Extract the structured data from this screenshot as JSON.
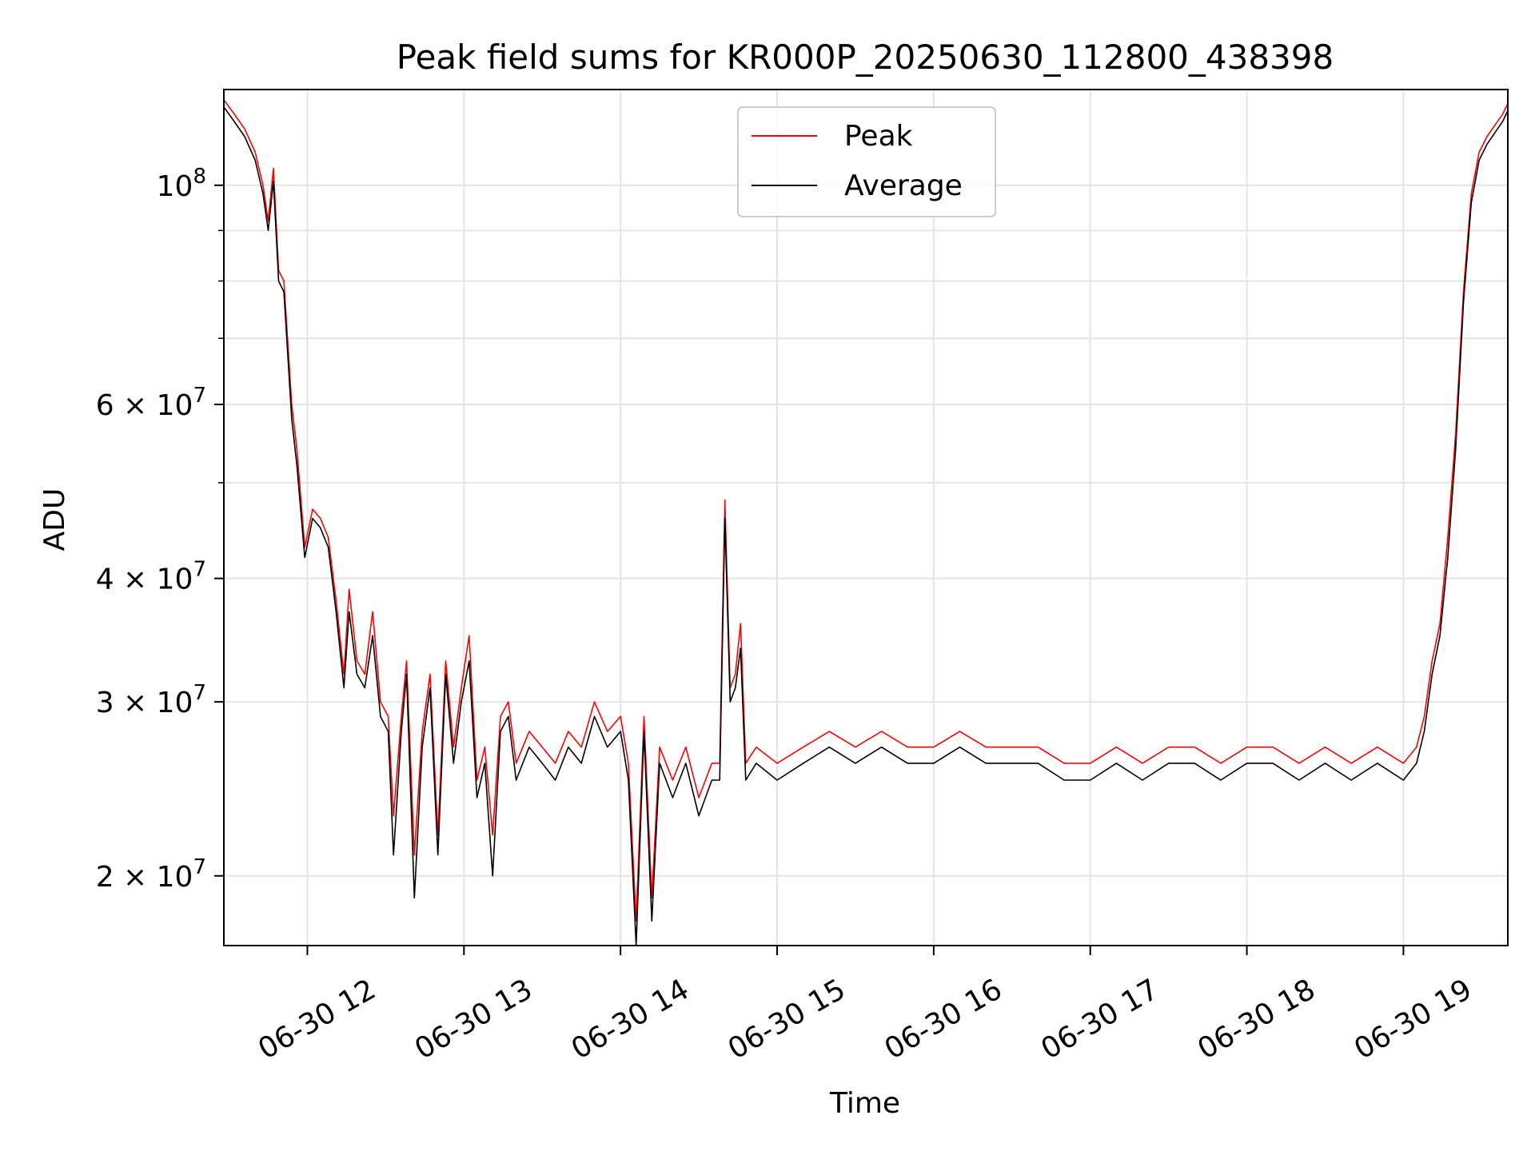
{
  "chart_data": {
    "type": "line",
    "title": "Peak field sums for KR000P_20250630_112800_438398",
    "xlabel": "Time",
    "ylabel": "ADU",
    "yscale": "log",
    "grid": true,
    "legend_position": "upper center",
    "colors": {
      "Peak": "#ff0000",
      "Average": "#000000"
    },
    "xlim": [
      "2025-06-30 11:28",
      "2025-06-30 19:40"
    ],
    "ylim": [
      17000000,
      125000000
    ],
    "x_ticks": [
      {
        "value": "2025-06-30 12:00",
        "label": "06-30 12"
      },
      {
        "value": "2025-06-30 13:00",
        "label": "06-30 13"
      },
      {
        "value": "2025-06-30 14:00",
        "label": "06-30 14"
      },
      {
        "value": "2025-06-30 15:00",
        "label": "06-30 15"
      },
      {
        "value": "2025-06-30 16:00",
        "label": "06-30 16"
      },
      {
        "value": "2025-06-30 17:00",
        "label": "06-30 17"
      },
      {
        "value": "2025-06-30 18:00",
        "label": "06-30 18"
      },
      {
        "value": "2025-06-30 19:00",
        "label": "06-30 19"
      }
    ],
    "y_ticks": [
      {
        "value": 20000000,
        "label_base": "2 × 10",
        "label_exp": "7"
      },
      {
        "value": 30000000,
        "label_base": "3 × 10",
        "label_exp": "7"
      },
      {
        "value": 40000000,
        "label_base": "4 × 10",
        "label_exp": "7"
      },
      {
        "value": 60000000,
        "label_base": "6 × 10",
        "label_exp": "7"
      },
      {
        "value": 100000000,
        "label_base": "10",
        "label_exp": "8"
      }
    ],
    "minor_y_gridlines": [
      50000000,
      70000000,
      80000000,
      90000000
    ],
    "series": [
      {
        "name": "Peak",
        "points": [
          [
            "2025-06-30 11:28",
            122000000
          ],
          [
            "2025-06-30 11:32",
            118000000
          ],
          [
            "2025-06-30 11:36",
            114000000
          ],
          [
            "2025-06-30 11:40",
            108000000
          ],
          [
            "2025-06-30 11:43",
            100000000
          ],
          [
            "2025-06-30 11:45",
            92000000
          ],
          [
            "2025-06-30 11:47",
            104000000
          ],
          [
            "2025-06-30 11:49",
            82000000
          ],
          [
            "2025-06-30 11:51",
            80000000
          ],
          [
            "2025-06-30 11:54",
            60000000
          ],
          [
            "2025-06-30 11:56",
            54000000
          ],
          [
            "2025-06-30 11:59",
            43000000
          ],
          [
            "2025-06-30 12:02",
            47000000
          ],
          [
            "2025-06-30 12:05",
            46000000
          ],
          [
            "2025-06-30 12:08",
            44000000
          ],
          [
            "2025-06-30 12:11",
            38000000
          ],
          [
            "2025-06-30 12:14",
            32000000
          ],
          [
            "2025-06-30 12:16",
            39000000
          ],
          [
            "2025-06-30 12:19",
            33000000
          ],
          [
            "2025-06-30 12:22",
            32000000
          ],
          [
            "2025-06-30 12:25",
            37000000
          ],
          [
            "2025-06-30 12:28",
            30000000
          ],
          [
            "2025-06-30 12:31",
            29000000
          ],
          [
            "2025-06-30 12:33",
            23000000
          ],
          [
            "2025-06-30 12:36",
            29000000
          ],
          [
            "2025-06-30 12:38",
            33000000
          ],
          [
            "2025-06-30 12:41",
            21000000
          ],
          [
            "2025-06-30 12:44",
            28000000
          ],
          [
            "2025-06-30 12:47",
            32000000
          ],
          [
            "2025-06-30 12:50",
            22000000
          ],
          [
            "2025-06-30 12:53",
            33000000
          ],
          [
            "2025-06-30 12:56",
            27000000
          ],
          [
            "2025-06-30 12:59",
            31000000
          ],
          [
            "2025-06-30 13:02",
            35000000
          ],
          [
            "2025-06-30 13:05",
            25000000
          ],
          [
            "2025-06-30 13:08",
            27000000
          ],
          [
            "2025-06-30 13:11",
            22000000
          ],
          [
            "2025-06-30 13:14",
            29000000
          ],
          [
            "2025-06-30 13:17",
            30000000
          ],
          [
            "2025-06-30 13:20",
            26000000
          ],
          [
            "2025-06-30 13:25",
            28000000
          ],
          [
            "2025-06-30 13:30",
            27000000
          ],
          [
            "2025-06-30 13:35",
            26000000
          ],
          [
            "2025-06-30 13:40",
            28000000
          ],
          [
            "2025-06-30 13:45",
            27000000
          ],
          [
            "2025-06-30 13:50",
            30000000
          ],
          [
            "2025-06-30 13:55",
            28000000
          ],
          [
            "2025-06-30 14:00",
            29000000
          ],
          [
            "2025-06-30 14:03",
            26000000
          ],
          [
            "2025-06-30 14:06",
            18000000
          ],
          [
            "2025-06-30 14:09",
            29000000
          ],
          [
            "2025-06-30 14:12",
            19000000
          ],
          [
            "2025-06-30 14:15",
            27000000
          ],
          [
            "2025-06-30 14:20",
            25000000
          ],
          [
            "2025-06-30 14:25",
            27000000
          ],
          [
            "2025-06-30 14:30",
            24000000
          ],
          [
            "2025-06-30 14:35",
            26000000
          ],
          [
            "2025-06-30 14:38",
            26000000
          ],
          [
            "2025-06-30 14:40",
            48000000
          ],
          [
            "2025-06-30 14:42",
            31000000
          ],
          [
            "2025-06-30 14:44",
            32000000
          ],
          [
            "2025-06-30 14:46",
            36000000
          ],
          [
            "2025-06-30 14:48",
            26000000
          ],
          [
            "2025-06-30 14:52",
            27000000
          ],
          [
            "2025-06-30 15:00",
            26000000
          ],
          [
            "2025-06-30 15:10",
            27000000
          ],
          [
            "2025-06-30 15:20",
            28000000
          ],
          [
            "2025-06-30 15:30",
            27000000
          ],
          [
            "2025-06-30 15:40",
            28000000
          ],
          [
            "2025-06-30 15:50",
            27000000
          ],
          [
            "2025-06-30 16:00",
            27000000
          ],
          [
            "2025-06-30 16:10",
            28000000
          ],
          [
            "2025-06-30 16:20",
            27000000
          ],
          [
            "2025-06-30 16:30",
            27000000
          ],
          [
            "2025-06-30 16:40",
            27000000
          ],
          [
            "2025-06-30 16:50",
            26000000
          ],
          [
            "2025-06-30 17:00",
            26000000
          ],
          [
            "2025-06-30 17:10",
            27000000
          ],
          [
            "2025-06-30 17:20",
            26000000
          ],
          [
            "2025-06-30 17:30",
            27000000
          ],
          [
            "2025-06-30 17:40",
            27000000
          ],
          [
            "2025-06-30 17:50",
            26000000
          ],
          [
            "2025-06-30 18:00",
            27000000
          ],
          [
            "2025-06-30 18:10",
            27000000
          ],
          [
            "2025-06-30 18:20",
            26000000
          ],
          [
            "2025-06-30 18:30",
            27000000
          ],
          [
            "2025-06-30 18:40",
            26000000
          ],
          [
            "2025-06-30 18:50",
            27000000
          ],
          [
            "2025-06-30 19:00",
            26000000
          ],
          [
            "2025-06-30 19:05",
            27000000
          ],
          [
            "2025-06-30 19:08",
            29000000
          ],
          [
            "2025-06-30 19:11",
            33000000
          ],
          [
            "2025-06-30 19:14",
            36000000
          ],
          [
            "2025-06-30 19:17",
            44000000
          ],
          [
            "2025-06-30 19:20",
            56000000
          ],
          [
            "2025-06-30 19:23",
            78000000
          ],
          [
            "2025-06-30 19:26",
            98000000
          ],
          [
            "2025-06-30 19:29",
            108000000
          ],
          [
            "2025-06-30 19:32",
            112000000
          ],
          [
            "2025-06-30 19:35",
            115000000
          ],
          [
            "2025-06-30 19:38",
            118000000
          ],
          [
            "2025-06-30 19:40",
            121000000
          ]
        ]
      },
      {
        "name": "Average",
        "points": [
          [
            "2025-06-30 11:28",
            120000000
          ],
          [
            "2025-06-30 11:32",
            116000000
          ],
          [
            "2025-06-30 11:36",
            112000000
          ],
          [
            "2025-06-30 11:40",
            106000000
          ],
          [
            "2025-06-30 11:43",
            98000000
          ],
          [
            "2025-06-30 11:45",
            90000000
          ],
          [
            "2025-06-30 11:47",
            101000000
          ],
          [
            "2025-06-30 11:49",
            80000000
          ],
          [
            "2025-06-30 11:51",
            78000000
          ],
          [
            "2025-06-30 11:54",
            58000000
          ],
          [
            "2025-06-30 11:56",
            52000000
          ],
          [
            "2025-06-30 11:59",
            42000000
          ],
          [
            "2025-06-30 12:02",
            46000000
          ],
          [
            "2025-06-30 12:05",
            45000000
          ],
          [
            "2025-06-30 12:08",
            43000000
          ],
          [
            "2025-06-30 12:11",
            37000000
          ],
          [
            "2025-06-30 12:14",
            31000000
          ],
          [
            "2025-06-30 12:16",
            37000000
          ],
          [
            "2025-06-30 12:19",
            32000000
          ],
          [
            "2025-06-30 12:22",
            31000000
          ],
          [
            "2025-06-30 12:25",
            35000000
          ],
          [
            "2025-06-30 12:28",
            29000000
          ],
          [
            "2025-06-30 12:31",
            28000000
          ],
          [
            "2025-06-30 12:33",
            21000000
          ],
          [
            "2025-06-30 12:36",
            28000000
          ],
          [
            "2025-06-30 12:38",
            32000000
          ],
          [
            "2025-06-30 12:41",
            19000000
          ],
          [
            "2025-06-30 12:44",
            27000000
          ],
          [
            "2025-06-30 12:47",
            31000000
          ],
          [
            "2025-06-30 12:50",
            21000000
          ],
          [
            "2025-06-30 12:53",
            32000000
          ],
          [
            "2025-06-30 12:56",
            26000000
          ],
          [
            "2025-06-30 12:59",
            30000000
          ],
          [
            "2025-06-30 13:02",
            33000000
          ],
          [
            "2025-06-30 13:05",
            24000000
          ],
          [
            "2025-06-30 13:08",
            26000000
          ],
          [
            "2025-06-30 13:11",
            20000000
          ],
          [
            "2025-06-30 13:14",
            28000000
          ],
          [
            "2025-06-30 13:17",
            29000000
          ],
          [
            "2025-06-30 13:20",
            25000000
          ],
          [
            "2025-06-30 13:25",
            27000000
          ],
          [
            "2025-06-30 13:30",
            26000000
          ],
          [
            "2025-06-30 13:35",
            25000000
          ],
          [
            "2025-06-30 13:40",
            27000000
          ],
          [
            "2025-06-30 13:45",
            26000000
          ],
          [
            "2025-06-30 13:50",
            29000000
          ],
          [
            "2025-06-30 13:55",
            27000000
          ],
          [
            "2025-06-30 14:00",
            28000000
          ],
          [
            "2025-06-30 14:03",
            25000000
          ],
          [
            "2025-06-30 14:06",
            17000000
          ],
          [
            "2025-06-30 14:09",
            28000000
          ],
          [
            "2025-06-30 14:12",
            18000000
          ],
          [
            "2025-06-30 14:15",
            26000000
          ],
          [
            "2025-06-30 14:20",
            24000000
          ],
          [
            "2025-06-30 14:25",
            26000000
          ],
          [
            "2025-06-30 14:30",
            23000000
          ],
          [
            "2025-06-30 14:35",
            25000000
          ],
          [
            "2025-06-30 14:38",
            25000000
          ],
          [
            "2025-06-30 14:40",
            46000000
          ],
          [
            "2025-06-30 14:42",
            30000000
          ],
          [
            "2025-06-30 14:44",
            31000000
          ],
          [
            "2025-06-30 14:46",
            34000000
          ],
          [
            "2025-06-30 14:48",
            25000000
          ],
          [
            "2025-06-30 14:52",
            26000000
          ],
          [
            "2025-06-30 15:00",
            25000000
          ],
          [
            "2025-06-30 15:10",
            26000000
          ],
          [
            "2025-06-30 15:20",
            27000000
          ],
          [
            "2025-06-30 15:30",
            26000000
          ],
          [
            "2025-06-30 15:40",
            27000000
          ],
          [
            "2025-06-30 15:50",
            26000000
          ],
          [
            "2025-06-30 16:00",
            26000000
          ],
          [
            "2025-06-30 16:10",
            27000000
          ],
          [
            "2025-06-30 16:20",
            26000000
          ],
          [
            "2025-06-30 16:30",
            26000000
          ],
          [
            "2025-06-30 16:40",
            26000000
          ],
          [
            "2025-06-30 16:50",
            25000000
          ],
          [
            "2025-06-30 17:00",
            25000000
          ],
          [
            "2025-06-30 17:10",
            26000000
          ],
          [
            "2025-06-30 17:20",
            25000000
          ],
          [
            "2025-06-30 17:30",
            26000000
          ],
          [
            "2025-06-30 17:40",
            26000000
          ],
          [
            "2025-06-30 17:50",
            25000000
          ],
          [
            "2025-06-30 18:00",
            26000000
          ],
          [
            "2025-06-30 18:10",
            26000000
          ],
          [
            "2025-06-30 18:20",
            25000000
          ],
          [
            "2025-06-30 18:30",
            26000000
          ],
          [
            "2025-06-30 18:40",
            25000000
          ],
          [
            "2025-06-30 18:50",
            26000000
          ],
          [
            "2025-06-30 19:00",
            25000000
          ],
          [
            "2025-06-30 19:05",
            26000000
          ],
          [
            "2025-06-30 19:08",
            28000000
          ],
          [
            "2025-06-30 19:11",
            32000000
          ],
          [
            "2025-06-30 19:14",
            35000000
          ],
          [
            "2025-06-30 19:17",
            42000000
          ],
          [
            "2025-06-30 19:20",
            54000000
          ],
          [
            "2025-06-30 19:23",
            76000000
          ],
          [
            "2025-06-30 19:26",
            96000000
          ],
          [
            "2025-06-30 19:29",
            106000000
          ],
          [
            "2025-06-30 19:32",
            110000000
          ],
          [
            "2025-06-30 19:35",
            113000000
          ],
          [
            "2025-06-30 19:38",
            116000000
          ],
          [
            "2025-06-30 19:40",
            119000000
          ]
        ]
      }
    ]
  }
}
